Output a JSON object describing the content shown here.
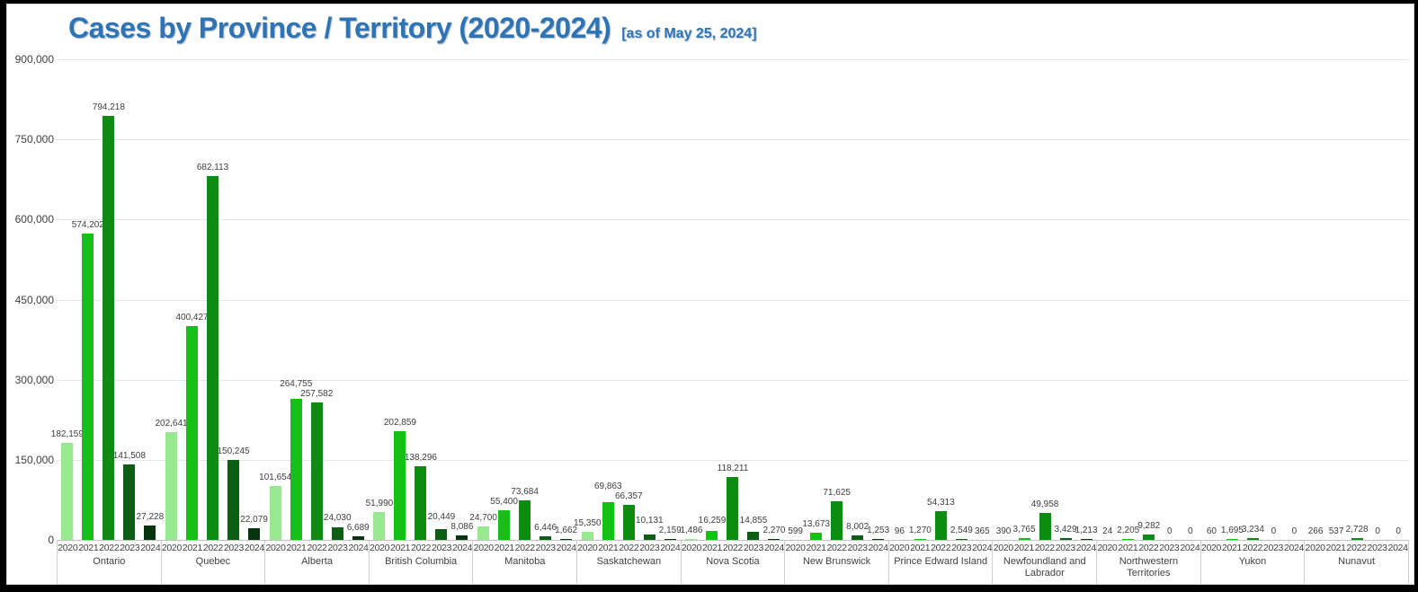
{
  "frame": {
    "outer_border_color": "#000000",
    "inner_border_color": "#d9d9d9",
    "background": "#ffffff"
  },
  "header": {
    "title": "Cases by Province / Territory (2020-2024)",
    "subtitle": "[as of May 25, 2024]",
    "title_color": "#2E74B5"
  },
  "chart_data": {
    "type": "bar",
    "title": "Cases by Province / Territory (2020-2024)",
    "subtitle": "[as of May 25, 2024]",
    "xlabel": "",
    "ylabel": "",
    "ylim": [
      0,
      900000
    ],
    "yticks": [
      900000,
      750000,
      600000,
      450000,
      300000,
      150000,
      0
    ],
    "ytick_labels": [
      "900,000",
      "750,000",
      "600,000",
      "450,000",
      "300,000",
      "150,000",
      "0"
    ],
    "grid": true,
    "legend_position": "none",
    "value_labels": true,
    "categories": [
      "2020",
      "2021",
      "2022",
      "2023",
      "2024"
    ],
    "series_colors": [
      "#97E98F",
      "#15C115",
      "#0E8C12",
      "#0B5E13",
      "#07340D"
    ],
    "provinces": [
      {
        "name": "Ontario",
        "values": [
          182159,
          574202,
          794218,
          141508,
          27228
        ]
      },
      {
        "name": "Quebec",
        "values": [
          202641,
          400427,
          682113,
          150245,
          22079
        ]
      },
      {
        "name": "Alberta",
        "values": [
          101654,
          264755,
          257582,
          24030,
          6689
        ]
      },
      {
        "name": "British Columbia",
        "values": [
          51990,
          202859,
          138296,
          20449,
          8086
        ]
      },
      {
        "name": "Manitoba",
        "values": [
          24700,
          55400,
          73684,
          6446,
          1662
        ]
      },
      {
        "name": "Saskatchewan",
        "values": [
          15350,
          69863,
          66357,
          10131,
          2159
        ]
      },
      {
        "name": "Nova Scotia",
        "values": [
          1486,
          16259,
          118211,
          14855,
          2270
        ]
      },
      {
        "name": "New Brunswick",
        "values": [
          599,
          13673,
          71625,
          8002,
          1253
        ]
      },
      {
        "name": "Prince Edward Island",
        "values": [
          96,
          1270,
          54313,
          2549,
          365
        ]
      },
      {
        "name": "Newfoundland and Labrador",
        "values": [
          390,
          3765,
          49958,
          3429,
          1213
        ]
      },
      {
        "name": "Northwestern Territories",
        "values": [
          24,
          2205,
          9282,
          0,
          0
        ]
      },
      {
        "name": "Yukon",
        "values": [
          60,
          1695,
          3234,
          0,
          0
        ]
      },
      {
        "name": "Nunavut",
        "values": [
          266,
          537,
          2728,
          0,
          0
        ]
      }
    ]
  },
  "colors": {
    "gridline": "#e6e6e6",
    "zero_line": "#c2c2c2",
    "axis_text": "#404040",
    "value_label_text": "#3d3d3d"
  }
}
